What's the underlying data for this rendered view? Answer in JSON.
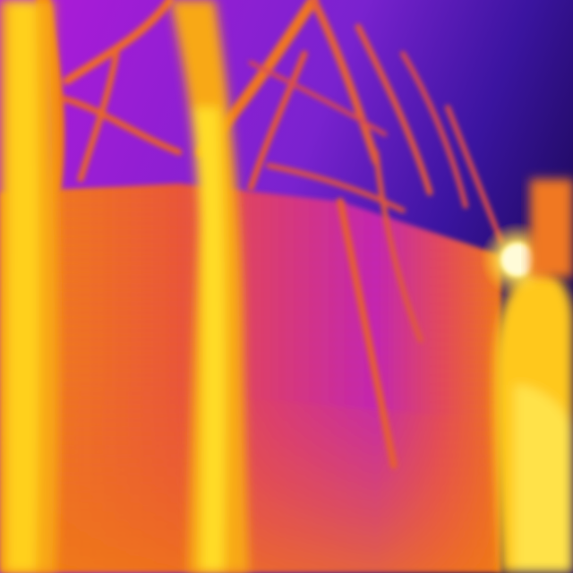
{
  "image": {
    "kind": "thermal-camera-photo",
    "palette": [
      "#1e0a5e",
      "#5a1fc0",
      "#9c14d6",
      "#c81ccc",
      "#e83c6a",
      "#f06a12",
      "#f89a10",
      "#ffd21a",
      "#fff8c4"
    ],
    "subjects": [
      "bare-tree-trunks",
      "branches",
      "building-wall",
      "warm-light-source"
    ]
  }
}
